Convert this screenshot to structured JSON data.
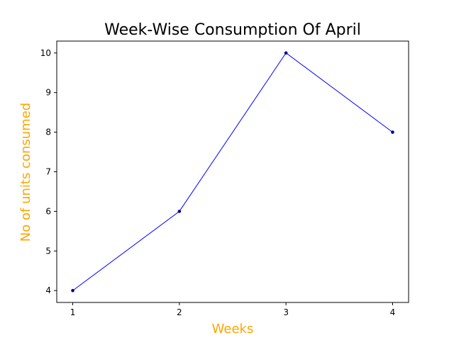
{
  "chart_data": {
    "type": "line",
    "title": "Week-Wise Consumption Of April",
    "xlabel": "Weeks",
    "ylabel": "No of units consumed",
    "x": [
      1,
      2,
      3,
      4
    ],
    "series": [
      {
        "values": [
          4,
          6,
          10,
          8
        ]
      }
    ],
    "xticks": [
      "1",
      "2",
      "3",
      "4"
    ],
    "yticks": [
      "4",
      "5",
      "6",
      "7",
      "8",
      "9",
      "10"
    ],
    "xlim": [
      0.85,
      4.15
    ],
    "ylim": [
      3.7,
      10.3
    ],
    "grid": false,
    "legend": false
  },
  "colors": {
    "line": "#0000ff",
    "marker": "#00008b",
    "axis_label": "#ffa500",
    "title": "#000000"
  }
}
